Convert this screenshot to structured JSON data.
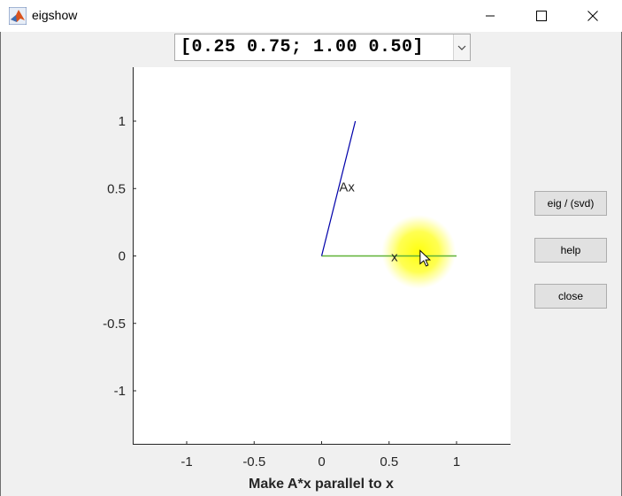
{
  "window": {
    "title": "eigshow",
    "controls": {
      "minimize": "minimize-icon",
      "maximize": "maximize-icon",
      "close": "close-icon"
    }
  },
  "matrix_select": {
    "value": "[0.25 0.75; 1.00 0.50]"
  },
  "buttons": {
    "eig_svd": "eig / (svd)",
    "help": "help",
    "close": "close"
  },
  "plot": {
    "xticks": [
      "-1",
      "-0.5",
      "0",
      "0.5",
      "1"
    ],
    "yticks": [
      "1",
      "0.5",
      "0",
      "-0.5",
      "-1"
    ],
    "xlabel": "Make A*x parallel to x",
    "xlim": [
      -1.4,
      1.4
    ],
    "ylim": [
      -1.4,
      1.4
    ],
    "vectors": {
      "x": {
        "label": "x",
        "end": [
          1,
          0
        ],
        "color": "#5fb236"
      },
      "Ax": {
        "label": "Ax",
        "end": [
          0.25,
          1.0
        ],
        "color": "#0000aa"
      }
    },
    "highlight_color": "#ffff00",
    "cursor_icon": "mouse-pointer-icon"
  },
  "chart_data": {
    "type": "line",
    "title": "",
    "xlabel": "Make A*x parallel to x",
    "ylabel": "",
    "xlim": [
      -1.4,
      1.4
    ],
    "ylim": [
      -1.4,
      1.4
    ],
    "grid": false,
    "series": [
      {
        "name": "x",
        "x": [
          0,
          1
        ],
        "y": [
          0,
          0
        ]
      },
      {
        "name": "Ax",
        "x": [
          0,
          0.25
        ],
        "y": [
          0,
          1.0
        ]
      }
    ]
  }
}
